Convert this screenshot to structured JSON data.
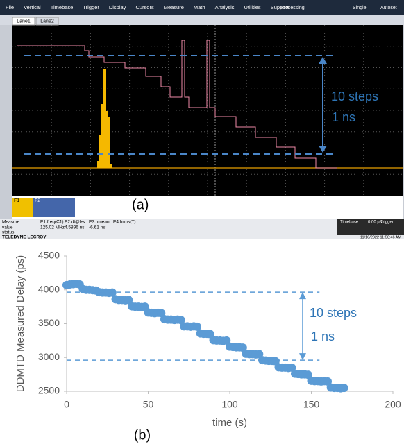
{
  "screenshot": {
    "menu": [
      "File",
      "Vertical",
      "Timebase",
      "Trigger",
      "Display",
      "Cursors",
      "Measure",
      "Math",
      "Analysis",
      "Utilities",
      "Support"
    ],
    "menu_right": [
      "Processing",
      "Single",
      "Autoset"
    ],
    "tabs": [
      "Lane1",
      "Lane2"
    ],
    "annotation": [
      "10 steps",
      "1 ns"
    ],
    "panel_label": "(a)",
    "functions": [
      "F1",
      "F2"
    ],
    "measure": {
      "header": [
        "Measure",
        "P1:freq(C1)",
        "P2:dt@lev",
        "P3:hmean",
        "P4:hrms(T)"
      ],
      "value": [
        "value",
        "125.02 MHz",
        "4.5896 ns",
        "-6.61 ns"
      ],
      "status": "status"
    },
    "timebase": [
      "Timebase",
      "0.00 µs",
      "Trigger"
    ],
    "brand": "TELEDYNE LECROY",
    "timestamp": "11/16/2022 11:50:46 AM"
  },
  "chart_data": {
    "type": "scatter",
    "xlabel": "time (s)",
    "ylabel": "DDMTD Measured Delay (ps)",
    "panel_label": "(b)",
    "annotation": [
      "10 steps",
      "1 ns"
    ],
    "color": "#5b9bd5",
    "grid": false,
    "xlim": [
      0,
      200
    ],
    "xticks": [
      0,
      50,
      100,
      150,
      200
    ],
    "ylim": [
      2500,
      4500
    ],
    "yticks": [
      2500,
      3000,
      3500,
      4000,
      4500
    ],
    "reference_lines": [
      {
        "y": 3965,
        "x": [
          0,
          155
        ]
      },
      {
        "y": 2960,
        "x": [
          0,
          155
        ]
      }
    ],
    "x": [
      0,
      2,
      4,
      6,
      8,
      10,
      12,
      14,
      16,
      18,
      20,
      22,
      24,
      26,
      28,
      30,
      32,
      34,
      36,
      38,
      40,
      42,
      44,
      46,
      48,
      50,
      52,
      54,
      56,
      58,
      60,
      62,
      64,
      66,
      68,
      70,
      72,
      74,
      76,
      78,
      80,
      82,
      84,
      86,
      88,
      90,
      92,
      94,
      96,
      98,
      100,
      102,
      104,
      106,
      108,
      110,
      112,
      114,
      116,
      118,
      120,
      122,
      124,
      126,
      128,
      130,
      132,
      134,
      136,
      138,
      140,
      142,
      144,
      146,
      148,
      150,
      152,
      154,
      156,
      158,
      160,
      162,
      164,
      166,
      168,
      170
    ],
    "values": [
      4070,
      4080,
      4085,
      4090,
      4080,
      4010,
      4000,
      4000,
      3995,
      3990,
      3965,
      3960,
      3960,
      3955,
      3960,
      3860,
      3850,
      3850,
      3845,
      3850,
      3755,
      3750,
      3750,
      3745,
      3750,
      3665,
      3660,
      3655,
      3660,
      3655,
      3565,
      3560,
      3560,
      3555,
      3560,
      3555,
      3460,
      3460,
      3455,
      3460,
      3455,
      3355,
      3350,
      3350,
      3345,
      3255,
      3250,
      3250,
      3245,
      3250,
      3160,
      3155,
      3150,
      3150,
      3145,
      3055,
      3050,
      3050,
      3045,
      3050,
      2960,
      2955,
      2950,
      2950,
      2945,
      2855,
      2850,
      2850,
      2845,
      2850,
      2760,
      2755,
      2750,
      2750,
      2745,
      2655,
      2650,
      2650,
      2645,
      2650,
      2645,
      2555,
      2550,
      2550,
      2545,
      2550
    ]
  }
}
